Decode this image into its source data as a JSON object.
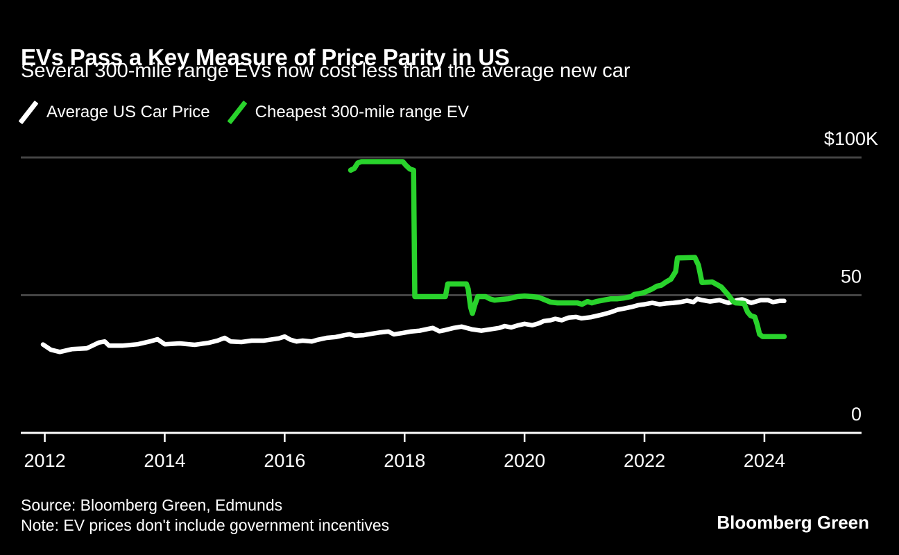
{
  "header": {
    "title": "EVs Pass a Key Measure of Price Parity in US",
    "subtitle": "Several 300-mile range EVs now cost less than the average new car"
  },
  "footer": {
    "source": "Source: Bloomberg Green, Edmunds",
    "note": "Note: EV prices don't include government incentives",
    "brand": "Bloomberg Green"
  },
  "colors": {
    "background": "#000000",
    "text": "#ffffff",
    "grid": "#444444",
    "axis": "#ffffff",
    "avg_line": "#ffffff",
    "ev_line": "#29d32c"
  },
  "chart_data": {
    "type": "line",
    "title": "EVs Pass a Key Measure of Price Parity in US",
    "unit": "thousand USD",
    "xlim": [
      2011.6,
      2025.62
    ],
    "ylim": [
      0,
      100
    ],
    "grid": "horizontal",
    "legend_position": "top",
    "x_ticks": [
      2012,
      2014,
      2016,
      2018,
      2020,
      2022,
      2024
    ],
    "y_gridlines": [
      {
        "value": 100,
        "label": "$100K"
      },
      {
        "value": 50,
        "label": "50"
      },
      {
        "value": 0,
        "label": "0"
      }
    ],
    "series": [
      {
        "name": "Average US Car Price",
        "color": "#ffffff",
        "points": [
          [
            2011.97,
            32.1
          ],
          [
            2012.1,
            30.2
          ],
          [
            2012.25,
            29.4
          ],
          [
            2012.45,
            30.4
          ],
          [
            2012.7,
            30.7
          ],
          [
            2012.9,
            32.8
          ],
          [
            2013.0,
            33.2
          ],
          [
            2013.07,
            31.7
          ],
          [
            2013.3,
            31.7
          ],
          [
            2013.55,
            32.2
          ],
          [
            2013.75,
            33.2
          ],
          [
            2013.88,
            34.0
          ],
          [
            2014.0,
            32.2
          ],
          [
            2014.25,
            32.5
          ],
          [
            2014.5,
            32.0
          ],
          [
            2014.73,
            32.7
          ],
          [
            2014.88,
            33.5
          ],
          [
            2015.0,
            34.5
          ],
          [
            2015.1,
            33.2
          ],
          [
            2015.28,
            33.0
          ],
          [
            2015.45,
            33.5
          ],
          [
            2015.65,
            33.5
          ],
          [
            2015.9,
            34.3
          ],
          [
            2016.0,
            35.0
          ],
          [
            2016.1,
            33.8
          ],
          [
            2016.2,
            33.2
          ],
          [
            2016.3,
            33.5
          ],
          [
            2016.45,
            33.2
          ],
          [
            2016.55,
            33.8
          ],
          [
            2016.7,
            34.5
          ],
          [
            2016.85,
            34.8
          ],
          [
            2017.0,
            35.5
          ],
          [
            2017.08,
            35.8
          ],
          [
            2017.17,
            35.3
          ],
          [
            2017.32,
            35.5
          ],
          [
            2017.45,
            36.0
          ],
          [
            2017.6,
            36.5
          ],
          [
            2017.73,
            36.8
          ],
          [
            2017.82,
            35.8
          ],
          [
            2017.97,
            36.3
          ],
          [
            2018.1,
            36.8
          ],
          [
            2018.25,
            37.1
          ],
          [
            2018.4,
            37.8
          ],
          [
            2018.47,
            38.1
          ],
          [
            2018.58,
            36.9
          ],
          [
            2018.67,
            37.3
          ],
          [
            2018.82,
            38.1
          ],
          [
            2018.95,
            38.6
          ],
          [
            2019.12,
            37.6
          ],
          [
            2019.28,
            37.1
          ],
          [
            2019.43,
            37.6
          ],
          [
            2019.58,
            38.1
          ],
          [
            2019.67,
            38.8
          ],
          [
            2019.78,
            38.3
          ],
          [
            2019.9,
            39.1
          ],
          [
            2020.0,
            39.6
          ],
          [
            2020.13,
            39.1
          ],
          [
            2020.24,
            39.8
          ],
          [
            2020.32,
            40.6
          ],
          [
            2020.43,
            40.9
          ],
          [
            2020.51,
            41.4
          ],
          [
            2020.62,
            40.9
          ],
          [
            2020.74,
            41.9
          ],
          [
            2020.86,
            42.1
          ],
          [
            2020.95,
            41.6
          ],
          [
            2021.1,
            42.0
          ],
          [
            2021.32,
            43.1
          ],
          [
            2021.45,
            43.9
          ],
          [
            2021.55,
            44.7
          ],
          [
            2021.67,
            45.2
          ],
          [
            2021.78,
            45.7
          ],
          [
            2021.9,
            46.4
          ],
          [
            2022.0,
            46.7
          ],
          [
            2022.13,
            47.2
          ],
          [
            2022.25,
            46.7
          ],
          [
            2022.36,
            47.0
          ],
          [
            2022.48,
            47.2
          ],
          [
            2022.6,
            47.5
          ],
          [
            2022.71,
            48.0
          ],
          [
            2022.82,
            47.5
          ],
          [
            2022.88,
            48.7
          ],
          [
            2022.96,
            48.2
          ],
          [
            2023.09,
            47.7
          ],
          [
            2023.25,
            48.2
          ],
          [
            2023.4,
            47.2
          ],
          [
            2023.55,
            48.2
          ],
          [
            2023.63,
            48.5
          ],
          [
            2023.78,
            47.2
          ],
          [
            2023.94,
            48.2
          ],
          [
            2024.06,
            48.2
          ],
          [
            2024.14,
            47.5
          ],
          [
            2024.25,
            47.9
          ],
          [
            2024.33,
            47.9
          ]
        ]
      },
      {
        "name": "Cheapest 300-mile range EV",
        "color": "#29d32c",
        "points": [
          [
            2017.1,
            95.4
          ],
          [
            2017.16,
            96.0
          ],
          [
            2017.22,
            98.0
          ],
          [
            2017.28,
            98.5
          ],
          [
            2017.97,
            98.5
          ],
          [
            2018.02,
            97.2
          ],
          [
            2018.09,
            95.8
          ],
          [
            2018.15,
            95.4
          ],
          [
            2018.17,
            49.5
          ],
          [
            2018.68,
            49.5
          ],
          [
            2018.72,
            54.1
          ],
          [
            2019.03,
            54.1
          ],
          [
            2019.06,
            52.3
          ],
          [
            2019.1,
            45.7
          ],
          [
            2019.13,
            43.4
          ],
          [
            2019.17,
            46.4
          ],
          [
            2019.22,
            49.5
          ],
          [
            2019.35,
            49.5
          ],
          [
            2019.42,
            48.7
          ],
          [
            2019.5,
            48.2
          ],
          [
            2019.62,
            48.5
          ],
          [
            2019.73,
            48.7
          ],
          [
            2019.88,
            49.5
          ],
          [
            2020.0,
            49.7
          ],
          [
            2020.13,
            49.5
          ],
          [
            2020.24,
            49.2
          ],
          [
            2020.32,
            48.5
          ],
          [
            2020.43,
            47.5
          ],
          [
            2020.55,
            47.2
          ],
          [
            2020.88,
            47.2
          ],
          [
            2020.96,
            46.7
          ],
          [
            2021.05,
            47.7
          ],
          [
            2021.12,
            47.2
          ],
          [
            2021.2,
            47.7
          ],
          [
            2021.32,
            48.2
          ],
          [
            2021.44,
            48.7
          ],
          [
            2021.55,
            48.7
          ],
          [
            2021.66,
            49.0
          ],
          [
            2021.78,
            49.5
          ],
          [
            2021.83,
            50.3
          ],
          [
            2021.9,
            50.5
          ],
          [
            2022.0,
            51.0
          ],
          [
            2022.13,
            52.3
          ],
          [
            2022.21,
            53.3
          ],
          [
            2022.28,
            53.6
          ],
          [
            2022.36,
            54.8
          ],
          [
            2022.44,
            55.8
          ],
          [
            2022.52,
            58.6
          ],
          [
            2022.55,
            63.5
          ],
          [
            2022.84,
            63.7
          ],
          [
            2022.9,
            60.9
          ],
          [
            2022.96,
            54.6
          ],
          [
            2023.13,
            54.8
          ],
          [
            2023.28,
            53.0
          ],
          [
            2023.4,
            50.0
          ],
          [
            2023.48,
            47.7
          ],
          [
            2023.52,
            47.2
          ],
          [
            2023.66,
            47.0
          ],
          [
            2023.72,
            43.9
          ],
          [
            2023.77,
            42.6
          ],
          [
            2023.84,
            42.1
          ],
          [
            2023.88,
            39.3
          ],
          [
            2023.92,
            35.8
          ],
          [
            2023.97,
            35.0
          ],
          [
            2024.33,
            35.0
          ]
        ]
      }
    ]
  }
}
